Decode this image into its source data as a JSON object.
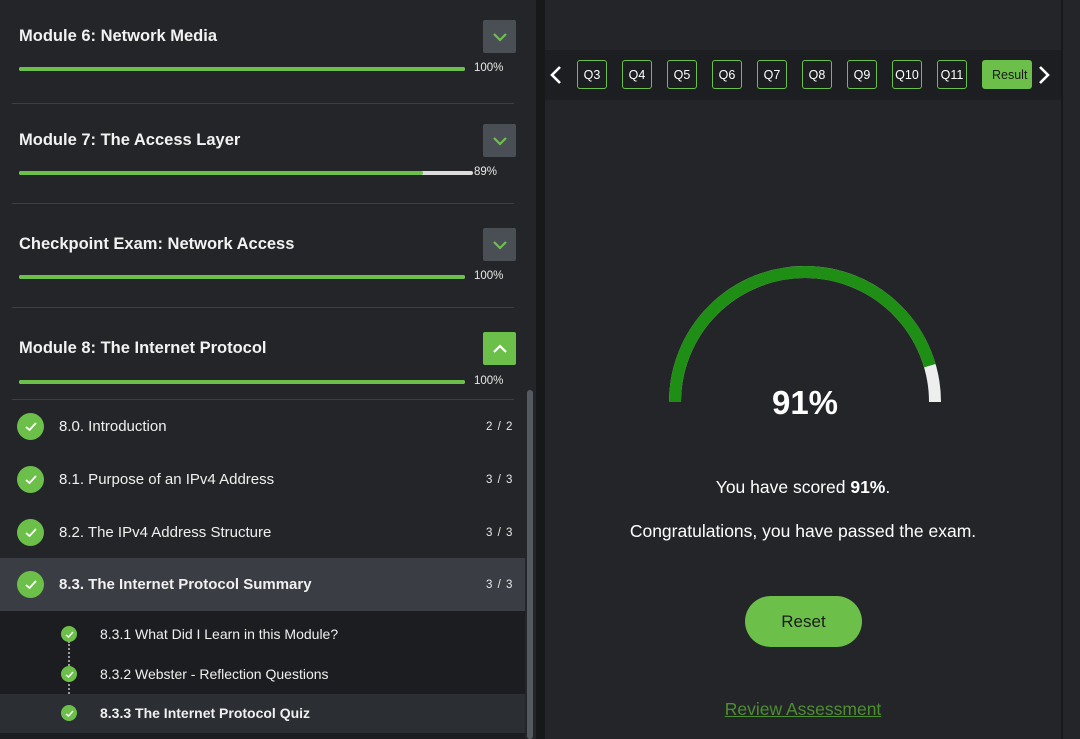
{
  "modules": [
    {
      "title": "Module 6: Network Media",
      "progress_label": "100%",
      "progress": 1.0,
      "expanded": false
    },
    {
      "title": "Module 7: The Access Layer",
      "progress_label": "89%",
      "progress": 0.89,
      "expanded": false
    },
    {
      "title": "Checkpoint Exam: Network Access",
      "progress_label": "100%",
      "progress": 1.0,
      "expanded": false
    },
    {
      "title": "Module 8: The Internet Protocol",
      "progress_label": "100%",
      "progress": 1.0,
      "expanded": true
    }
  ],
  "lessons": [
    {
      "label": "8.0. Introduction",
      "count": "2 / 2"
    },
    {
      "label": "8.1. Purpose of an IPv4 Address",
      "count": "3 / 3"
    },
    {
      "label": "8.2. The IPv4 Address Structure",
      "count": "3 / 3"
    },
    {
      "label": "8.3. The Internet Protocol Summary",
      "count": "3 / 3",
      "active": true
    }
  ],
  "sublessons": [
    {
      "label": "8.3.1 What Did I Learn in this Module?"
    },
    {
      "label": "8.3.2 Webster - Reflection Questions"
    },
    {
      "label": "8.3.3 The Internet Protocol Quiz",
      "active": true
    }
  ],
  "question_nav": {
    "questions": [
      "Q3",
      "Q4",
      "Q5",
      "Q6",
      "Q7",
      "Q8",
      "Q9",
      "Q10",
      "Q11"
    ],
    "result_label": "Result",
    "prev_icon": "chevron-left-icon",
    "next_icon": "chevron-right-icon"
  },
  "result": {
    "score_percent": 91,
    "score_label": "91%",
    "scored_prefix": "You have scored ",
    "scored_value": "91%",
    "scored_suffix": ".",
    "message": "Congratulations, you have passed the exam.",
    "reset_label": "Reset",
    "review_label": "Review Assessment"
  },
  "colors": {
    "accent": "#6cc04a",
    "gauge_fill": "#1f8e14",
    "gauge_track": "#eeeeee",
    "link": "#4c8f30"
  }
}
